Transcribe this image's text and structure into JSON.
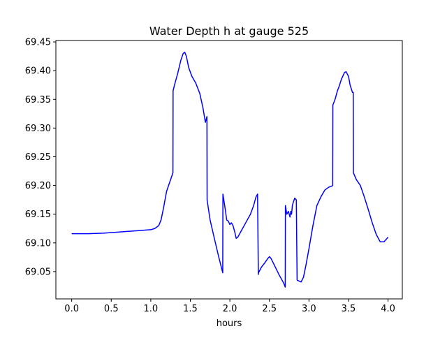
{
  "chart_data": {
    "type": "line",
    "title": "Water Depth h at gauge 525",
    "xlabel": "hours",
    "ylabel": "",
    "xlim": [
      -0.2,
      4.18
    ],
    "ylim": [
      69.0025,
      69.4525
    ],
    "xticks": [
      0.0,
      0.5,
      1.0,
      1.5,
      2.0,
      2.5,
      3.0,
      3.5,
      4.0
    ],
    "xtick_labels": [
      "0.0",
      "0.5",
      "1.0",
      "1.5",
      "2.0",
      "2.5",
      "3.0",
      "3.5",
      "4.0"
    ],
    "yticks": [
      69.05,
      69.1,
      69.15,
      69.2,
      69.25,
      69.3,
      69.35,
      69.4,
      69.45
    ],
    "ytick_labels": [
      "69.05",
      "69.10",
      "69.15",
      "69.20",
      "69.25",
      "69.30",
      "69.35",
      "69.40",
      "69.45"
    ],
    "grid": false,
    "series": [
      {
        "color": "#0000ff",
        "x": [
          0.0,
          0.2,
          0.4,
          0.6,
          0.7,
          0.8,
          0.9,
          1.0,
          1.05,
          1.1,
          1.13,
          1.16,
          1.2,
          1.25,
          1.28,
          1.282,
          1.3,
          1.34,
          1.38,
          1.41,
          1.43,
          1.45,
          1.48,
          1.52,
          1.57,
          1.62,
          1.66,
          1.69,
          1.71,
          1.712,
          1.75,
          1.8,
          1.86,
          1.91,
          1.912,
          1.94,
          1.96,
          1.98,
          2.0,
          2.02,
          2.04,
          2.06,
          2.08,
          2.1,
          2.14,
          2.2,
          2.26,
          2.3,
          2.33,
          2.35,
          2.36,
          2.362,
          2.4,
          2.44,
          2.48,
          2.5,
          2.52,
          2.56,
          2.62,
          2.68,
          2.7,
          2.702,
          2.72,
          2.74,
          2.76,
          2.77,
          2.78,
          2.79,
          2.8,
          2.82,
          2.84,
          2.85,
          2.852,
          2.9,
          2.93,
          2.96,
          3.0,
          3.05,
          3.1,
          3.15,
          3.2,
          3.25,
          3.29,
          3.3,
          3.302,
          3.33,
          3.36,
          3.38,
          3.41,
          3.45,
          3.47,
          3.5,
          3.52,
          3.55,
          3.56,
          3.562,
          3.6,
          3.65,
          3.7,
          3.75,
          3.8,
          3.85,
          3.9,
          3.95,
          4.0
        ],
        "values": [
          69.116,
          69.116,
          69.117,
          69.119,
          69.12,
          69.121,
          69.122,
          69.123,
          69.125,
          69.13,
          69.14,
          69.16,
          69.19,
          69.21,
          69.222,
          69.365,
          69.375,
          69.395,
          69.418,
          69.43,
          69.432,
          69.425,
          69.405,
          69.39,
          69.378,
          69.36,
          69.335,
          69.31,
          69.32,
          69.175,
          69.14,
          69.11,
          69.075,
          69.048,
          69.185,
          69.16,
          69.14,
          69.138,
          69.132,
          69.135,
          69.13,
          69.12,
          69.108,
          69.11,
          69.12,
          69.135,
          69.15,
          69.165,
          69.18,
          69.185,
          69.045,
          69.048,
          69.058,
          69.065,
          69.073,
          69.076,
          69.073,
          69.062,
          69.045,
          69.03,
          69.023,
          69.165,
          69.15,
          69.155,
          69.145,
          69.155,
          69.15,
          69.165,
          69.17,
          69.178,
          69.175,
          69.036,
          69.035,
          69.032,
          69.04,
          69.06,
          69.09,
          69.13,
          69.165,
          69.18,
          69.192,
          69.197,
          69.199,
          69.2,
          69.34,
          69.35,
          69.365,
          69.372,
          69.385,
          69.397,
          69.398,
          69.39,
          69.375,
          69.362,
          69.362,
          69.222,
          69.21,
          69.2,
          69.18,
          69.158,
          69.135,
          69.115,
          69.102,
          69.102,
          69.11
        ]
      }
    ]
  }
}
